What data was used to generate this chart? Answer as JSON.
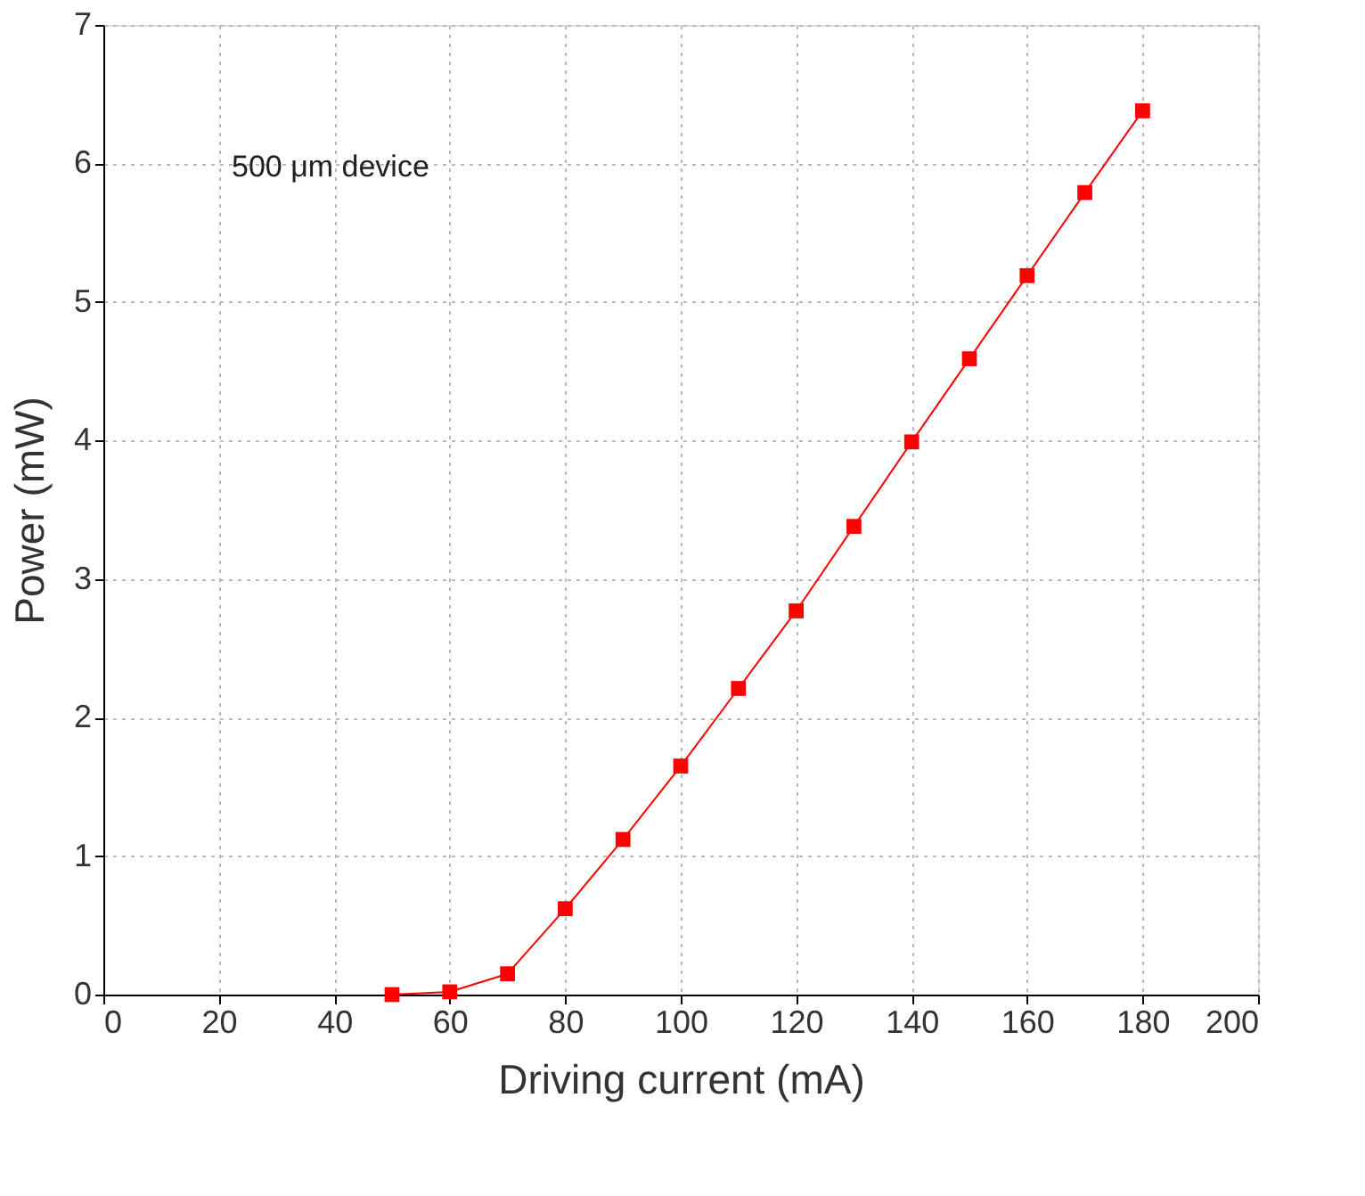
{
  "chart_data": {
    "type": "line",
    "xlabel": "Driving current (mA)",
    "ylabel": "Power (mW)",
    "x": [
      50,
      60,
      70,
      80,
      90,
      100,
      110,
      120,
      130,
      140,
      150,
      160,
      170,
      180
    ],
    "series": [
      {
        "color": "#ff0000",
        "values": [
          0.0,
          0.02,
          0.15,
          0.62,
          1.12,
          1.65,
          2.21,
          2.77,
          3.38,
          3.99,
          4.59,
          5.19,
          5.79,
          6.38
        ]
      }
    ],
    "xlim": [
      0,
      200
    ],
    "xticks": [
      0,
      20,
      40,
      60,
      80,
      100,
      120,
      140,
      160,
      180,
      200
    ],
    "ylim": [
      0,
      7
    ],
    "yticks": [
      0,
      1,
      2,
      3,
      4,
      5,
      6,
      7
    ],
    "grid": true,
    "marker": "square",
    "line_style": "solid",
    "legend": false,
    "annotations": [
      "500 μm device"
    ]
  }
}
